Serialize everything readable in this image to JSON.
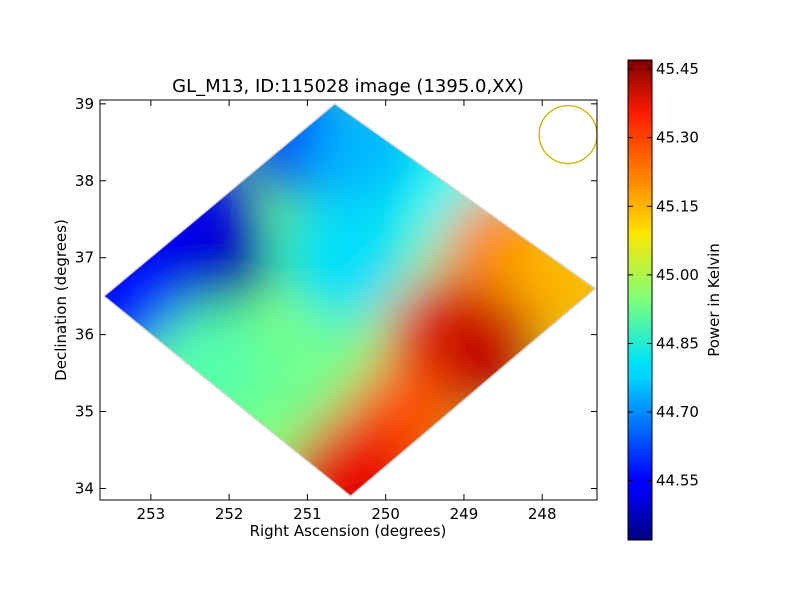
{
  "chart_data": [
    {
      "type": "heatmap",
      "title": "GL_M13, ID:115028 image (1395.0,XX)",
      "xlabel": "Right Ascension (degrees)",
      "ylabel": "Declination (degrees)",
      "x_inverted": true,
      "xlim": [
        253.65,
        247.3
      ],
      "ylim": [
        33.85,
        39.05
      ],
      "x_ticks": [
        253,
        252,
        251,
        250,
        249,
        248
      ],
      "y_ticks": [
        34,
        35,
        36,
        37,
        38,
        39
      ],
      "grid": false,
      "footprint_corners": [
        {
          "ra": 250.65,
          "dec": 39.0
        },
        {
          "ra": 247.32,
          "dec": 36.6
        },
        {
          "ra": 250.45,
          "dec": 33.9
        },
        {
          "ra": 253.6,
          "dec": 36.5
        }
      ],
      "value_samples": [
        {
          "ra": 252.3,
          "dec": 37.05,
          "value": 44.45
        },
        {
          "ra": 252.6,
          "dec": 37.6,
          "value": 44.53
        },
        {
          "ra": 251.0,
          "dec": 38.6,
          "value": 44.6
        },
        {
          "ra": 253.4,
          "dec": 36.5,
          "value": 44.55
        },
        {
          "ra": 250.2,
          "dec": 38.4,
          "value": 44.74
        },
        {
          "ra": 250.5,
          "dec": 37.0,
          "value": 44.78
        },
        {
          "ra": 249.0,
          "dec": 37.7,
          "value": 44.82
        },
        {
          "ra": 252.2,
          "dec": 35.6,
          "value": 44.9
        },
        {
          "ra": 250.8,
          "dec": 35.4,
          "value": 44.93
        },
        {
          "ra": 248.5,
          "dec": 37.1,
          "value": 45.2
        },
        {
          "ra": 247.7,
          "dec": 36.6,
          "value": 45.15
        },
        {
          "ra": 249.2,
          "dec": 35.9,
          "value": 45.28
        },
        {
          "ra": 248.8,
          "dec": 35.8,
          "value": 45.4
        },
        {
          "ra": 249.8,
          "dec": 34.8,
          "value": 45.25
        },
        {
          "ra": 250.4,
          "dec": 34.15,
          "value": 45.36
        }
      ],
      "colorbar": {
        "label": "Power in Kelvin",
        "range": [
          44.42,
          45.47
        ],
        "ticks": [
          "44.55",
          "44.70",
          "44.85",
          "45.00",
          "45.15",
          "45.30",
          "45.45"
        ],
        "colormap": "jet"
      },
      "beam_marker": {
        "ra": 247.67,
        "dec": 38.6,
        "radius_deg": 0.37,
        "color": "#c8b400"
      }
    }
  ]
}
